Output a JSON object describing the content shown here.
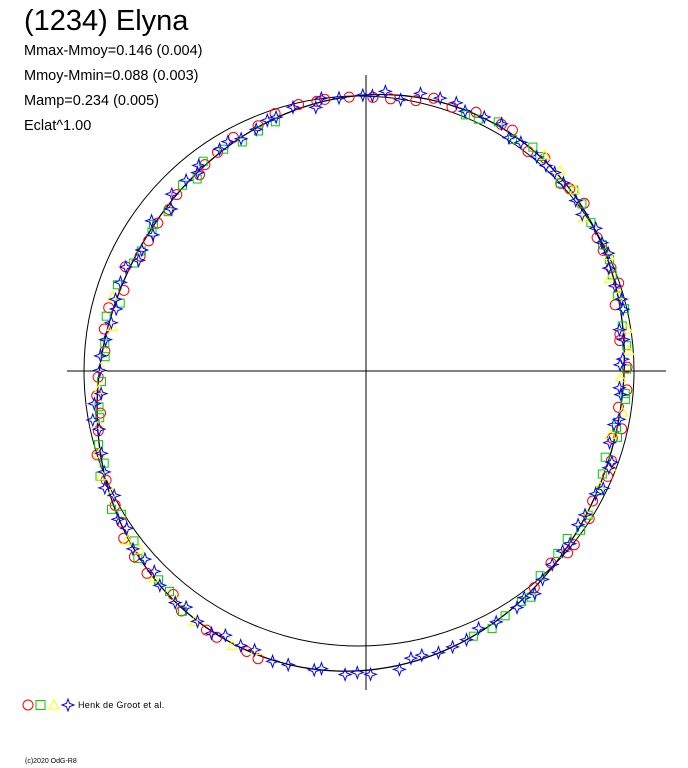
{
  "chart_data": {
    "type": "scatter",
    "title": "(1234) Elyna",
    "stats": [
      "Mmax-Mmoy=0.146 (0.004)",
      "Mmoy-Mmin=0.088 (0.003)",
      "Mamp=0.234 (0.005)",
      "Eclat^1.00"
    ],
    "plot_kind": "polar lightcurve (phase as angle, brightness as radius)",
    "reference_radius": 1.0,
    "axes_cross_at_center": true,
    "model_curve": {
      "mean": 1.0,
      "harmonics": [
        {
          "order": 1,
          "amp": 0.045,
          "phase_deg": 200
        },
        {
          "order": 2,
          "amp": 0.06,
          "phase_deg": 40
        }
      ]
    },
    "legend": {
      "label": "Henk de Groot et al.",
      "markers": [
        {
          "shape": "circle",
          "color": "#ff0000"
        },
        {
          "shape": "square",
          "color": "#00cc00"
        },
        {
          "shape": "triangle",
          "color": "#ffff00"
        },
        {
          "shape": "star",
          "color": "#0000ff"
        }
      ]
    },
    "series": [
      {
        "shape": "circle",
        "color": "#ff0000",
        "phase_ranges": [
          [
            0.0,
            0.4
          ],
          [
            0.55,
            1.0
          ]
        ],
        "count": 70
      },
      {
        "shape": "square",
        "color": "#00cc00",
        "phase_ranges": [
          [
            0.05,
            0.45
          ],
          [
            0.6,
            0.95
          ]
        ],
        "count": 65
      },
      {
        "shape": "triangle",
        "color": "#ffff00",
        "phase_ranges": [
          [
            0.1,
            0.35
          ],
          [
            0.55,
            0.8
          ]
        ],
        "count": 30
      },
      {
        "shape": "star",
        "color": "#0000ff",
        "phase_ranges": [
          [
            0.0,
            1.0
          ]
        ],
        "count": 110
      }
    ]
  },
  "footer": {
    "credit": "(c)2020 OdG-R8"
  }
}
